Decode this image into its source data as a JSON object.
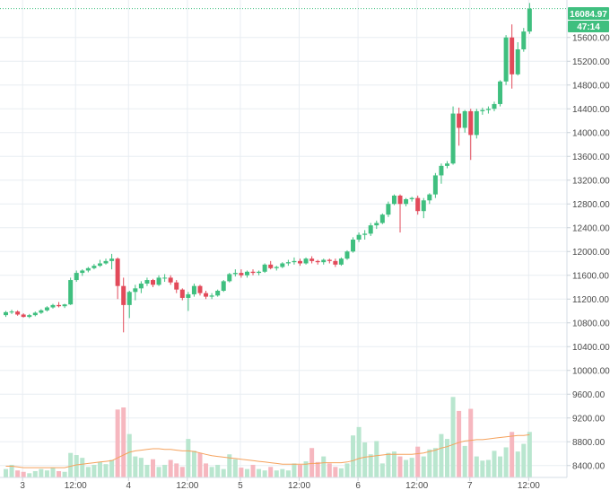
{
  "chart_data": {
    "type": "candlestick",
    "colors": {
      "up": "#3fbf7f",
      "down": "#e24a5a",
      "up_volume": "#b9e6cf",
      "down_volume": "#f6b7bf",
      "ma_line": "#f5a25d",
      "grid": "#e8edf2",
      "price_line": "#3fbf7f"
    },
    "y_axis": {
      "min": 8200,
      "max": 16200,
      "ticks": [
        "8400.00",
        "8800.00",
        "9200.00",
        "9600.00",
        "10000.00",
        "10400.00",
        "10800.00",
        "11200.00",
        "11600.00",
        "12000.00",
        "12400.00",
        "12800.00",
        "13200.00",
        "13600.00",
        "14000.00",
        "14400.00",
        "14800.00",
        "15200.00",
        "15600.00"
      ]
    },
    "x_axis": {
      "ticks": [
        "3",
        "12:00",
        "4",
        "12:00",
        "5",
        "12:00",
        "6",
        "12:00",
        "7",
        "12:00"
      ]
    },
    "last_price": "16084.97",
    "countdown": "47:14",
    "candles": [
      [
        10930,
        11000,
        10900,
        10980
      ],
      [
        10980,
        11020,
        10950,
        10990
      ],
      [
        10990,
        11010,
        10920,
        10940
      ],
      [
        10940,
        10960,
        10890,
        10900
      ],
      [
        10900,
        10950,
        10880,
        10930
      ],
      [
        10930,
        10990,
        10910,
        10970
      ],
      [
        10970,
        11030,
        10950,
        11010
      ],
      [
        11010,
        11080,
        10990,
        11060
      ],
      [
        11060,
        11120,
        11040,
        11100
      ],
      [
        11100,
        11150,
        11060,
        11080
      ],
      [
        11080,
        11120,
        11050,
        11110
      ],
      [
        11110,
        11560,
        11100,
        11520
      ],
      [
        11520,
        11680,
        11490,
        11640
      ],
      [
        11640,
        11700,
        11590,
        11680
      ],
      [
        11680,
        11740,
        11650,
        11720
      ],
      [
        11720,
        11790,
        11700,
        11760
      ],
      [
        11760,
        11860,
        11740,
        11800
      ],
      [
        11800,
        11880,
        11780,
        11840
      ],
      [
        11840,
        11960,
        11700,
        11880
      ],
      [
        11880,
        11900,
        11200,
        11420
      ],
      [
        11420,
        11560,
        10640,
        11100
      ],
      [
        11100,
        11340,
        10880,
        11320
      ],
      [
        11320,
        11440,
        11180,
        11380
      ],
      [
        11380,
        11500,
        11300,
        11460
      ],
      [
        11460,
        11560,
        11420,
        11520
      ],
      [
        11520,
        11540,
        11400,
        11440
      ],
      [
        11440,
        11600,
        11420,
        11560
      ],
      [
        11560,
        11620,
        11490,
        11560
      ],
      [
        11560,
        11600,
        11440,
        11480
      ],
      [
        11480,
        11520,
        11300,
        11360
      ],
      [
        11360,
        11380,
        11180,
        11220
      ],
      [
        11220,
        11320,
        11000,
        11280
      ],
      [
        11280,
        11460,
        11240,
        11420
      ],
      [
        11420,
        11440,
        11260,
        11300
      ],
      [
        11300,
        11340,
        11200,
        11240
      ],
      [
        11240,
        11300,
        11200,
        11260
      ],
      [
        11260,
        11360,
        11240,
        11340
      ],
      [
        11340,
        11520,
        11320,
        11500
      ],
      [
        11500,
        11640,
        11480,
        11620
      ],
      [
        11620,
        11700,
        11580,
        11640
      ],
      [
        11640,
        11700,
        11560,
        11600
      ],
      [
        11600,
        11680,
        11560,
        11660
      ],
      [
        11660,
        11700,
        11600,
        11640
      ],
      [
        11640,
        11680,
        11600,
        11660
      ],
      [
        11660,
        11800,
        11640,
        11780
      ],
      [
        11780,
        11840,
        11700,
        11720
      ],
      [
        11720,
        11760,
        11680,
        11740
      ],
      [
        11740,
        11820,
        11720,
        11800
      ],
      [
        11800,
        11860,
        11760,
        11820
      ],
      [
        11820,
        11900,
        11780,
        11840
      ],
      [
        11840,
        11880,
        11760,
        11800
      ],
      [
        11800,
        11900,
        11780,
        11880
      ],
      [
        11880,
        11920,
        11800,
        11840
      ],
      [
        11840,
        11860,
        11780,
        11820
      ],
      [
        11820,
        11880,
        11780,
        11860
      ],
      [
        11860,
        11880,
        11800,
        11840
      ],
      [
        11840,
        11880,
        11740,
        11780
      ],
      [
        11780,
        11900,
        11760,
        11880
      ],
      [
        11880,
        12020,
        11860,
        12000
      ],
      [
        12000,
        12240,
        11980,
        12200
      ],
      [
        12200,
        12320,
        12160,
        12280
      ],
      [
        12280,
        12360,
        12200,
        12300
      ],
      [
        12300,
        12480,
        12260,
        12440
      ],
      [
        12440,
        12520,
        12380,
        12480
      ],
      [
        12480,
        12640,
        12460,
        12620
      ],
      [
        12620,
        12840,
        12580,
        12800
      ],
      [
        12800,
        12960,
        12780,
        12940
      ],
      [
        12940,
        12960,
        12320,
        12800
      ],
      [
        12800,
        12900,
        12760,
        12880
      ],
      [
        12880,
        12920,
        12840,
        12900
      ],
      [
        12900,
        12940,
        12620,
        12680
      ],
      [
        12680,
        12900,
        12560,
        12860
      ],
      [
        12860,
        12980,
        12800,
        12960
      ],
      [
        12960,
        13320,
        12900,
        13280
      ],
      [
        13280,
        13480,
        13140,
        13440
      ],
      [
        13440,
        13520,
        13400,
        13480
      ],
      [
        13480,
        14440,
        13460,
        14320
      ],
      [
        14320,
        14420,
        13780,
        14080
      ],
      [
        14080,
        14380,
        14000,
        14360
      ],
      [
        14360,
        14400,
        13540,
        13960
      ],
      [
        13960,
        14400,
        13900,
        14360
      ],
      [
        14360,
        14420,
        14300,
        14380
      ],
      [
        14380,
        14440,
        14320,
        14400
      ],
      [
        14400,
        14520,
        14360,
        14480
      ],
      [
        14480,
        14880,
        14440,
        14860
      ],
      [
        14860,
        15640,
        14800,
        15600
      ],
      [
        15600,
        15820,
        14740,
        14980
      ],
      [
        14980,
        15520,
        14960,
        15400
      ],
      [
        15400,
        15760,
        15360,
        15700
      ],
      [
        15700,
        16180,
        15660,
        16084.97
      ]
    ],
    "volume": [
      0.12,
      0.18,
      0.1,
      0.08,
      0.06,
      0.09,
      0.12,
      0.1,
      0.14,
      0.09,
      0.08,
      0.35,
      0.32,
      0.28,
      0.15,
      0.18,
      0.22,
      0.19,
      0.25,
      0.97,
      1.0,
      0.62,
      0.3,
      0.28,
      0.18,
      0.26,
      0.15,
      0.18,
      0.25,
      0.2,
      0.15,
      0.55,
      0.38,
      0.35,
      0.2,
      0.15,
      0.18,
      0.12,
      0.33,
      0.26,
      0.14,
      0.12,
      0.18,
      0.12,
      0.1,
      0.15,
      0.1,
      0.12,
      0.1,
      0.2,
      0.18,
      0.23,
      0.42,
      0.22,
      0.3,
      0.2,
      0.15,
      0.13,
      0.2,
      0.6,
      0.72,
      0.5,
      0.33,
      0.52,
      0.2,
      0.35,
      0.37,
      0.3,
      0.25,
      0.28,
      0.44,
      0.3,
      0.4,
      0.42,
      0.62,
      0.55,
      1.15,
      0.95,
      0.45,
      0.98,
      0.3,
      0.24,
      0.25,
      0.38,
      0.3,
      0.43,
      0.65,
      0.37,
      0.48,
      0.65
    ],
    "ma": [
      0.16,
      0.16,
      0.15,
      0.14,
      0.14,
      0.14,
      0.14,
      0.14,
      0.14,
      0.14,
      0.14,
      0.16,
      0.18,
      0.19,
      0.2,
      0.21,
      0.22,
      0.23,
      0.24,
      0.28,
      0.32,
      0.36,
      0.38,
      0.39,
      0.4,
      0.41,
      0.41,
      0.4,
      0.4,
      0.39,
      0.38,
      0.38,
      0.37,
      0.35,
      0.33,
      0.31,
      0.3,
      0.29,
      0.28,
      0.27,
      0.26,
      0.25,
      0.24,
      0.23,
      0.22,
      0.21,
      0.2,
      0.19,
      0.19,
      0.19,
      0.19,
      0.19,
      0.2,
      0.2,
      0.21,
      0.21,
      0.21,
      0.21,
      0.22,
      0.24,
      0.27,
      0.29,
      0.3,
      0.31,
      0.32,
      0.33,
      0.33,
      0.33,
      0.33,
      0.33,
      0.34,
      0.35,
      0.37,
      0.39,
      0.42,
      0.44,
      0.47,
      0.5,
      0.52,
      0.53,
      0.54,
      0.54,
      0.55,
      0.56,
      0.57,
      0.58,
      0.59,
      0.6,
      0.6,
      0.61
    ]
  }
}
